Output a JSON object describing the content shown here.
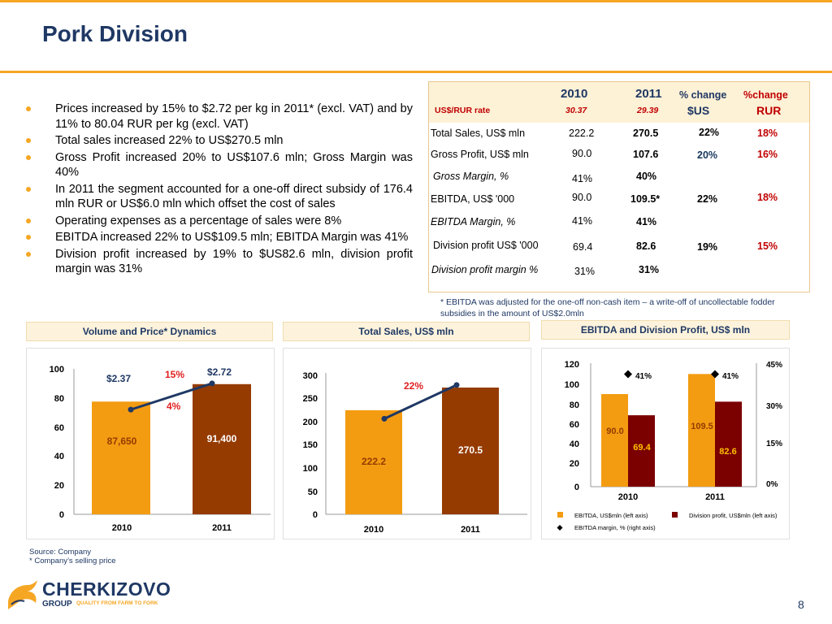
{
  "title": "Pork Division",
  "bullets": [
    "Prices increased by 15% to $2.72 per kg in 2011* (excl. VAT) and by 11% to 80.04 RUR per kg (excl. VAT)",
    "Total sales increased 22% to US$270.5 mln",
    "Gross Profit increased 20% to US$107.6 mln; Gross Margin was 40%",
    "In 2011 the segment accounted for a one-off direct subsidy of 176.4 mln RUR or US$6.0 mln which offset the cost of sales",
    "Operating expenses as a percentage of sales were 8%",
    "EBITDA increased 22% to US$109.5 mln; EBITDA Margin was 41%",
    "Division profit increased by 19% to $US82.6 mln, division profit margin was 31%"
  ],
  "kpi_table": {
    "col_2010": "2010",
    "col_2011": "2011",
    "col_change_usd_1": "% change",
    "col_change_usd_2": "$US",
    "col_change_rur_1": "%change",
    "col_change_rur_2": "RUR",
    "rate_label": "US$/RUR rate",
    "rate_2010": "30.37",
    "rate_2011": "29.39",
    "rows": [
      {
        "label": "Total Sales, US$ mln",
        "v2010": "222.2",
        "v2011": "270.5",
        "chg_usd": "22%",
        "chg_rur": "18%"
      },
      {
        "label": "Gross Profit, US$ mln",
        "v2010": "90.0",
        "v2011": "107.6",
        "chg_usd": "20%",
        "chg_rur": "16%"
      },
      {
        "label": "Gross Margin, %",
        "v2010": "41%",
        "v2011": "40%",
        "chg_usd": "",
        "chg_rur": ""
      },
      {
        "label": "EBITDA, US$ '000",
        "v2010": "90.0",
        "v2011": "109.5*",
        "chg_usd": "22%",
        "chg_rur": "18%"
      },
      {
        "label": "EBITDA Margin, %",
        "v2010": "41%",
        "v2011": "41%",
        "chg_usd": "",
        "chg_rur": ""
      },
      {
        "label": "Division profit US$ '000",
        "v2010": "69.4",
        "v2011": "82.6",
        "chg_usd": "19%",
        "chg_rur": "15%"
      },
      {
        "label": "Division profit margin %",
        "v2010": "31%",
        "v2011": "31%",
        "chg_usd": "",
        "chg_rur": ""
      }
    ]
  },
  "footnote": "* EBITDA was adjusted for the one-off non-cash item – a write-off of  uncollectable fodder subsidies in the amount of US$2.0mln",
  "charts_titles": {
    "volume": "Volume and Price* Dynamics",
    "sales": "Total Sales, US$ mln",
    "ebitda": "EBITDA and Division Profit, US$ mln"
  },
  "chart_data": [
    {
      "type": "bar",
      "title": "Volume and Price* Dynamics",
      "categories": [
        "2010",
        "2011"
      ],
      "y_ticks": [
        "0",
        "20",
        "40",
        "60",
        "80",
        "100"
      ],
      "bar_labels": [
        "87,650",
        "91,400"
      ],
      "bar_heights_scale": [
        77.5,
        89.5
      ],
      "price_labels": [
        "$2.37",
        "$2.72"
      ],
      "price_line": [
        72,
        90
      ],
      "annotations": [
        "15%",
        "4%"
      ],
      "ylim": [
        0,
        100
      ]
    },
    {
      "type": "bar",
      "title": "Total Sales, US$ mln",
      "categories": [
        "2010",
        "2011"
      ],
      "values": [
        222.2,
        270.5
      ],
      "bar_labels": [
        "222.2",
        "270.5"
      ],
      "y_ticks": [
        "0",
        "50",
        "100",
        "150",
        "200",
        "250",
        "300"
      ],
      "trend_line": [
        204,
        276
      ],
      "annotation": "22%",
      "ylim": [
        0,
        300
      ]
    },
    {
      "type": "bar",
      "title": "EBITDA and Division Profit, US$ mln",
      "categories": [
        "2010",
        "2011"
      ],
      "series": [
        {
          "name": "EBITDA, US$mln (left axis)",
          "values": [
            90.0,
            109.5
          ],
          "labels": [
            "90.0",
            "109.5"
          ]
        },
        {
          "name": "Division profit, US$mln (left axis)",
          "values": [
            69.4,
            82.6
          ],
          "labels": [
            "69.4",
            "82.6"
          ]
        },
        {
          "name": "EBITDA margin, % (right axis)",
          "values": [
            41,
            41
          ],
          "labels": [
            "41%",
            "41%"
          ]
        }
      ],
      "y_ticks": [
        "0",
        "20",
        "40",
        "60",
        "80",
        "100",
        "120"
      ],
      "y2_ticks": [
        "0%",
        "15%",
        "30%",
        "45%"
      ],
      "ylim": [
        0,
        120
      ],
      "y2lim": [
        0,
        45
      ],
      "legend_position": "bottom"
    }
  ],
  "colors": {
    "orange": "#f39c12",
    "brown": "#953b00",
    "dark_red": "#7b0000",
    "navy": "#1f3864",
    "red": "#e02020"
  },
  "source": "Source: Company",
  "source_note": "* Company’s selling price",
  "logo": {
    "brand": "CHERKIZOVO",
    "group": "GROUP",
    "tagline": "QUALITY FROM FARM TO FORK"
  },
  "page_number": "8"
}
